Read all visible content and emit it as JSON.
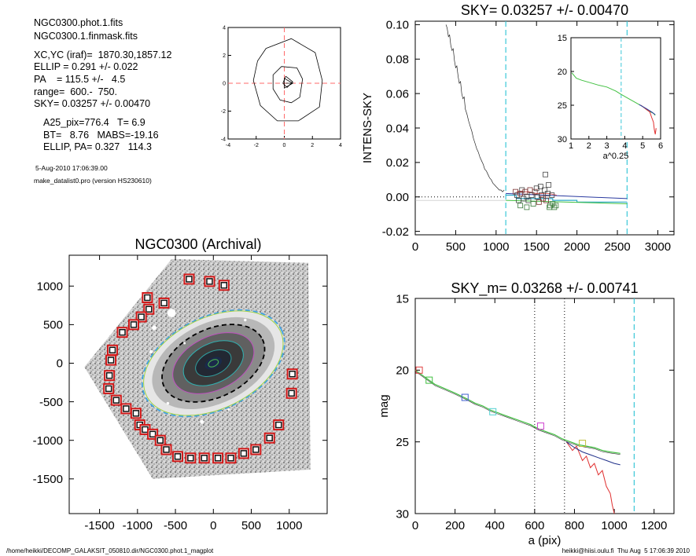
{
  "info": {
    "lines_a": [
      "NGC0300.phot.1.fits",
      "NGC0300.1.finmask.fits",
      "XC,YC (iraf)=  1870.30,1857.12",
      "ELLIP = 0.291 +/- 0.022",
      "PA    = 115.5 +/-   4.5",
      "range=  600.-  750.",
      "SKY= 0.03257 +/- 0.00470"
    ],
    "lines_b": [
      "A25_pix=776.4   T= 6.9",
      "BT=   8.76   MABS=-19.16",
      "ELLIP, PA= 0.327   114.3"
    ],
    "lines_c": [
      "5-Aug-2010 17:06:39.00",
      "make_datalist0.pro (version HS230610)"
    ]
  },
  "footer": {
    "left": "/home/heikki/DECOMP_GALAKSIT_050810.dir/NGC0300.phot.1_magplot",
    "right": "heikki@hiisi.oulu.fi  Thu Aug  5 17:06:39 2010"
  },
  "chart_data": [
    {
      "id": "center-contours",
      "type": "line",
      "title": "",
      "xlim": [
        -4,
        4
      ],
      "ylim": [
        -4,
        4
      ],
      "xticks": [
        "-4",
        "-2",
        "0",
        "2",
        "4"
      ],
      "yticks": [
        "-4",
        "-2",
        "0",
        "2",
        "4"
      ],
      "crosshair": {
        "x": 0,
        "y": 0,
        "color": "#ff6a6a"
      },
      "contours": [
        [
          [
            -1.3,
            2.5
          ],
          [
            0.5,
            3.2
          ],
          [
            2.2,
            2.2
          ],
          [
            2.7,
            0.2
          ],
          [
            2.5,
            -1.7
          ],
          [
            1.0,
            -2.7
          ],
          [
            -0.5,
            -2.7
          ],
          [
            -1.7,
            -1.6
          ],
          [
            -2.2,
            0.2
          ],
          [
            -1.9,
            1.6
          ],
          [
            -1.3,
            2.5
          ]
        ],
        [
          [
            -0.2,
            1.2
          ],
          [
            0.9,
            1.1
          ],
          [
            1.3,
            0.3
          ],
          [
            1.1,
            -1.0
          ],
          [
            0.5,
            -1.4
          ],
          [
            -0.3,
            -1.2
          ],
          [
            -0.8,
            -0.4
          ],
          [
            -0.8,
            0.6
          ],
          [
            -0.2,
            1.2
          ]
        ],
        [
          [
            0.1,
            0.5
          ],
          [
            0.6,
            0.1
          ],
          [
            0.2,
            -0.3
          ],
          [
            -0.1,
            0.0
          ],
          [
            0.1,
            0.5
          ]
        ]
      ]
    },
    {
      "id": "sky-profile",
      "type": "line",
      "title": "SKY= 0.03257 +/- 0.00470",
      "ylabel": "INTENS-SKY",
      "xlim": [
        0,
        3200
      ],
      "ylim": [
        -0.022,
        0.102
      ],
      "xticks": [
        "0",
        "500",
        "1000",
        "1500",
        "2000",
        "2500",
        "3000"
      ],
      "yticks": [
        "-0.02",
        "0.00",
        "0.02",
        "0.04",
        "0.06",
        "0.08",
        "0.10"
      ],
      "range_lines": [
        1120,
        2620
      ],
      "profile": [
        [
          380,
          0.1
        ],
        [
          395,
          0.098
        ],
        [
          410,
          0.093
        ],
        [
          425,
          0.094
        ],
        [
          440,
          0.088
        ],
        [
          455,
          0.085
        ],
        [
          470,
          0.086
        ],
        [
          485,
          0.079
        ],
        [
          500,
          0.075
        ],
        [
          515,
          0.076
        ],
        [
          530,
          0.07
        ],
        [
          545,
          0.066
        ],
        [
          560,
          0.067
        ],
        [
          575,
          0.06
        ],
        [
          590,
          0.057
        ],
        [
          605,
          0.058
        ],
        [
          620,
          0.051
        ],
        [
          640,
          0.048
        ],
        [
          660,
          0.044
        ],
        [
          680,
          0.041
        ],
        [
          700,
          0.038
        ],
        [
          720,
          0.034
        ],
        [
          740,
          0.031
        ],
        [
          760,
          0.028
        ],
        [
          780,
          0.026
        ],
        [
          800,
          0.023
        ],
        [
          820,
          0.021
        ],
        [
          840,
          0.019
        ],
        [
          860,
          0.016
        ],
        [
          880,
          0.015
        ],
        [
          900,
          0.013
        ],
        [
          920,
          0.011
        ],
        [
          940,
          0.01
        ],
        [
          960,
          0.008
        ],
        [
          980,
          0.007
        ],
        [
          1000,
          0.006
        ],
        [
          1020,
          0.005
        ],
        [
          1040,
          0.004
        ],
        [
          1060,
          0.004
        ],
        [
          1080,
          0.003
        ],
        [
          1100,
          0.004
        ]
      ],
      "sky_steps": [
        [
          1120,
          0.001
        ],
        [
          1250,
          0.001
        ],
        [
          1250,
          -0.001
        ],
        [
          1700,
          -0.001
        ],
        [
          1700,
          -0.002
        ],
        [
          2000,
          -0.002
        ],
        [
          2000,
          -0.003
        ],
        [
          2620,
          -0.003
        ]
      ],
      "sky_points": [
        [
          1240,
          0.003
        ],
        [
          1260,
          0.001
        ],
        [
          1280,
          -0.002
        ],
        [
          1300,
          0.002
        ],
        [
          1320,
          0.004
        ],
        [
          1340,
          -0.001
        ],
        [
          1360,
          0.003
        ],
        [
          1380,
          0.0
        ],
        [
          1400,
          -0.002
        ],
        [
          1420,
          0.004
        ],
        [
          1440,
          0.001
        ],
        [
          1460,
          -0.004
        ],
        [
          1480,
          0.003
        ],
        [
          1500,
          0.005
        ],
        [
          1510,
          0.0
        ],
        [
          1530,
          -0.003
        ],
        [
          1550,
          0.006
        ],
        [
          1560,
          0.001
        ],
        [
          1580,
          -0.001
        ],
        [
          1600,
          0.004
        ],
        [
          1610,
          0.013
        ],
        [
          1620,
          -0.002
        ],
        [
          1640,
          0.002
        ],
        [
          1650,
          0.007
        ],
        [
          1670,
          -0.005
        ],
        [
          1690,
          0.001
        ],
        [
          1700,
          -0.004
        ],
        [
          1720,
          -0.006
        ],
        [
          1740,
          -0.005
        ],
        [
          1660,
          -0.006
        ],
        [
          1300,
          -0.005
        ],
        [
          1380,
          -0.006
        ]
      ],
      "inset": {
        "xlabel": "a^0.25",
        "xlim": [
          1,
          6
        ],
        "ylim": [
          30,
          15
        ],
        "xticks": [
          "1",
          "2",
          "3",
          "4",
          "5",
          "6"
        ],
        "yticks": [
          "15",
          "20",
          "25",
          "30"
        ],
        "vline": 3.8,
        "green": [
          [
            1.05,
            20.2
          ],
          [
            1.3,
            21.0
          ],
          [
            1.6,
            21.3
          ],
          [
            2.0,
            21.6
          ],
          [
            2.5,
            22.0
          ],
          [
            3.0,
            22.3
          ],
          [
            3.5,
            22.9
          ],
          [
            3.8,
            23.4
          ],
          [
            4.2,
            24.0
          ],
          [
            4.6,
            24.6
          ],
          [
            5.0,
            25.2
          ],
          [
            5.3,
            25.8
          ],
          [
            5.6,
            26.2
          ],
          [
            5.7,
            26.5
          ]
        ],
        "red": [
          [
            4.9,
            25.0
          ],
          [
            5.2,
            25.6
          ],
          [
            5.4,
            26.0
          ],
          [
            5.5,
            26.8
          ],
          [
            5.6,
            27.5
          ],
          [
            5.65,
            28.6
          ],
          [
            5.7,
            29.3
          ],
          [
            5.75,
            28.4
          ]
        ]
      }
    },
    {
      "id": "galaxy-image",
      "type": "scatter",
      "title": "NGC0300 (Archival)",
      "xlim": [
        -1900,
        1500
      ],
      "ylim": [
        -1950,
        1400
      ],
      "xticks": [
        "-1500",
        "-1000",
        "-500",
        "0",
        "500",
        "1000"
      ],
      "yticks": [
        "-1500",
        "-1000",
        "-500",
        "0",
        "500",
        "1000"
      ],
      "mask_boxes": [
        [
          -320,
          1090
        ],
        [
          -50,
          1060
        ],
        [
          140,
          1010
        ],
        [
          -870,
          850
        ],
        [
          -650,
          780
        ],
        [
          -850,
          700
        ],
        [
          -950,
          600
        ],
        [
          -1050,
          500
        ],
        [
          -1200,
          400
        ],
        [
          -1330,
          170
        ],
        [
          -1350,
          40
        ],
        [
          -1370,
          -160
        ],
        [
          -1380,
          -330
        ],
        [
          -1280,
          -480
        ],
        [
          -1150,
          -590
        ],
        [
          -1020,
          -650
        ],
        [
          -970,
          -800
        ],
        [
          -900,
          -860
        ],
        [
          -800,
          -920
        ],
        [
          -700,
          -1000
        ],
        [
          -620,
          -1120
        ],
        [
          -470,
          -1210
        ],
        [
          -300,
          -1230
        ],
        [
          -120,
          -1230
        ],
        [
          60,
          -1230
        ],
        [
          230,
          -1230
        ],
        [
          400,
          -1170
        ],
        [
          560,
          -1120
        ],
        [
          740,
          -970
        ],
        [
          860,
          -800
        ],
        [
          1030,
          -390
        ],
        [
          1040,
          -140
        ]
      ],
      "ellipses": [
        {
          "rx": 1000,
          "ry": 600,
          "color": "#3fa0e0",
          "dash": true
        },
        {
          "rx": 980,
          "ry": 590,
          "color": "#a0d040",
          "dash": false
        },
        {
          "rx": 720,
          "ry": 440,
          "color": "#000000",
          "dash": true
        },
        {
          "rx": 570,
          "ry": 345,
          "color": "#c050c0",
          "dash": false
        },
        {
          "rx": 420,
          "ry": 255,
          "color": "#30b0b0",
          "dash": false
        },
        {
          "rx": 250,
          "ry": 150,
          "color": "#30a0a0",
          "dash": false
        },
        {
          "rx": 70,
          "ry": 42,
          "color": "#50c050",
          "dash": false
        }
      ]
    },
    {
      "id": "mag-profile",
      "type": "line",
      "title": "SKY_m=  0.03268 +/- 0.00741",
      "xlabel": "a (pix)",
      "ylabel": "mag",
      "xlim": [
        0,
        1300
      ],
      "ylim": [
        30,
        15
      ],
      "xticks": [
        "0",
        "200",
        "400",
        "600",
        "800",
        "1000",
        "1200"
      ],
      "yticks": [
        "15",
        "20",
        "25",
        "30"
      ],
      "dotted_lines": [
        600,
        750
      ],
      "dashed_line": 1100,
      "green": [
        [
          0,
          20.0
        ],
        [
          30,
          20.3
        ],
        [
          60,
          20.6
        ],
        [
          100,
          21.0
        ],
        [
          150,
          21.3
        ],
        [
          200,
          21.6
        ],
        [
          260,
          22.0
        ],
        [
          300,
          22.3
        ],
        [
          340,
          22.5
        ],
        [
          380,
          22.8
        ],
        [
          420,
          23.0
        ],
        [
          460,
          23.2
        ],
        [
          500,
          23.4
        ],
        [
          540,
          23.6
        ],
        [
          580,
          23.8
        ],
        [
          620,
          24.1
        ],
        [
          660,
          24.3
        ],
        [
          700,
          24.5
        ],
        [
          740,
          24.8
        ],
        [
          780,
          25.0
        ],
        [
          820,
          25.2
        ],
        [
          860,
          25.3
        ],
        [
          900,
          25.4
        ],
        [
          940,
          25.6
        ],
        [
          980,
          25.7
        ],
        [
          1030,
          25.8
        ]
      ],
      "blue": [
        [
          760,
          25.0
        ],
        [
          800,
          25.4
        ],
        [
          840,
          25.7
        ],
        [
          880,
          25.9
        ],
        [
          920,
          26.1
        ],
        [
          960,
          26.3
        ],
        [
          1000,
          26.5
        ],
        [
          1030,
          26.6
        ]
      ],
      "red": [
        [
          760,
          25.0
        ],
        [
          790,
          25.6
        ],
        [
          810,
          25.3
        ],
        [
          840,
          26.3
        ],
        [
          860,
          26.0
        ],
        [
          880,
          26.8
        ],
        [
          900,
          26.5
        ],
        [
          920,
          27.3
        ],
        [
          940,
          27.0
        ],
        [
          960,
          28.1
        ],
        [
          980,
          28.6
        ],
        [
          990,
          29.4
        ],
        [
          1000,
          30.0
        ]
      ],
      "markers": [
        [
          20,
          20.0,
          "#e04040"
        ],
        [
          70,
          20.7,
          "#40c040"
        ],
        [
          250,
          21.9,
          "#4060d0"
        ],
        [
          390,
          22.9,
          "#50d0d0"
        ],
        [
          630,
          23.9,
          "#d040d0"
        ],
        [
          840,
          25.1,
          "#c0c040"
        ]
      ]
    }
  ]
}
